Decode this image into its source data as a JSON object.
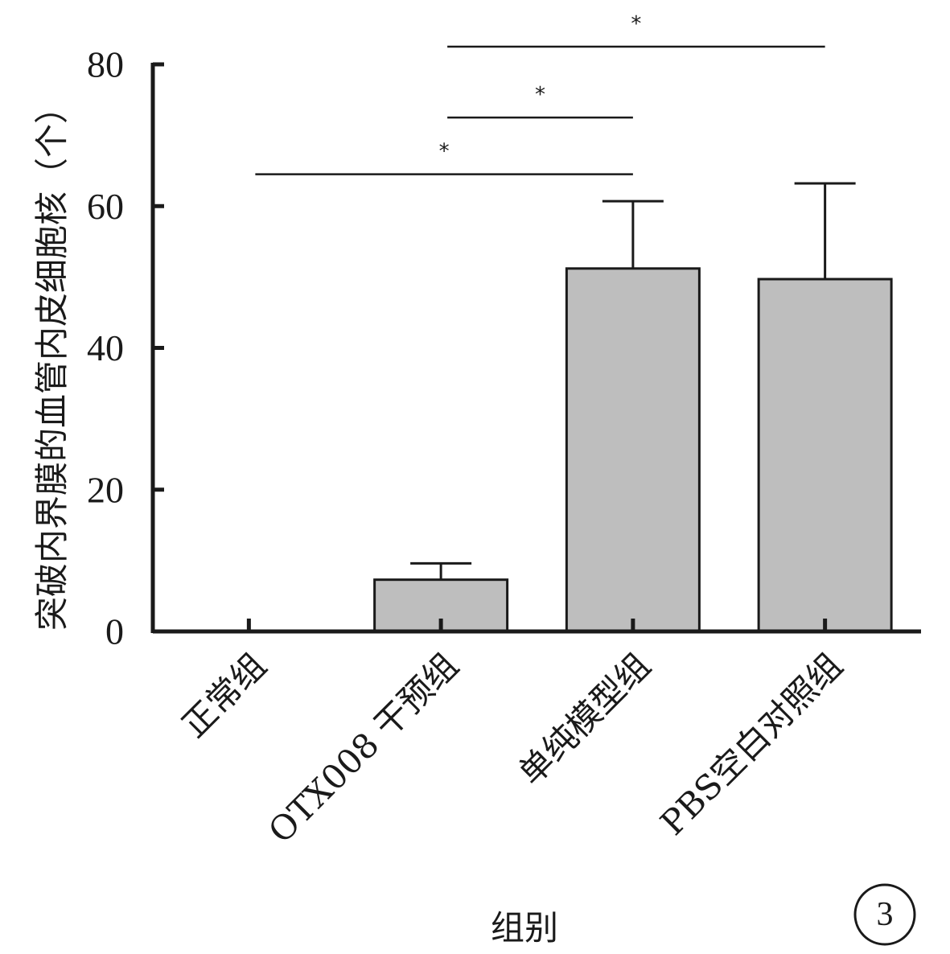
{
  "chart_data": {
    "type": "bar",
    "ylabel": "突破内界膜的血管内皮细胞核（个）",
    "xlabel": "组别",
    "categories": [
      "正常组",
      "OTX008 干预组",
      "单纯模型组",
      "PBS空白对照组"
    ],
    "values": [
      0,
      7.3,
      51.2,
      49.7
    ],
    "errors": [
      0,
      2.3,
      9.5,
      13.5
    ],
    "ylim": [
      0,
      80
    ],
    "yticks": [
      "0",
      "20",
      "40",
      "60",
      "80"
    ],
    "grid": false,
    "bar_color": "#bebebe",
    "significance": [
      {
        "from": 0,
        "to": 2,
        "label": "*",
        "y": 64.5
      },
      {
        "from": 1,
        "to": 2,
        "label": "*",
        "y": 72.5
      },
      {
        "from": 1,
        "to": 3,
        "label": "*",
        "y": 82.5
      }
    ],
    "panel_label": "3"
  }
}
